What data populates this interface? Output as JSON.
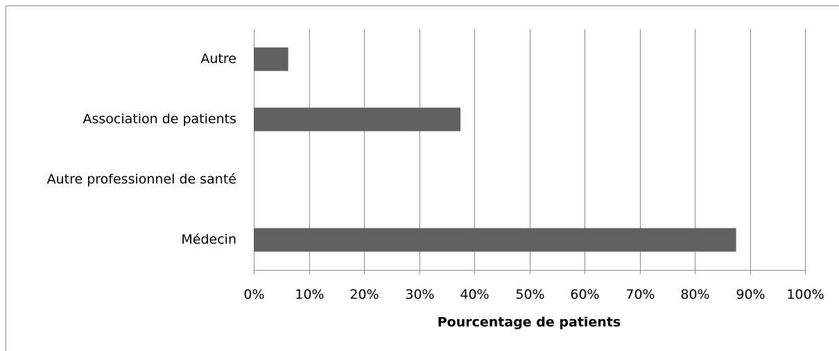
{
  "chart_data": {
    "type": "bar",
    "orientation": "horizontal",
    "categories": [
      "Autre",
      "Association de patients",
      "Autre professionnel de santé",
      "Médecin"
    ],
    "values": [
      6.25,
      37.5,
      0,
      87.5
    ],
    "color": "#606060",
    "xlabel": "Pourcentage de patients",
    "xlim": [
      0,
      100
    ],
    "xticks": [
      {
        "value": 0,
        "label": "0%"
      },
      {
        "value": 10,
        "label": "10%"
      },
      {
        "value": 20,
        "label": "20%"
      },
      {
        "value": 30,
        "label": "30%"
      },
      {
        "value": 40,
        "label": "40%"
      },
      {
        "value": 50,
        "label": "50%"
      },
      {
        "value": 60,
        "label": "60%"
      },
      {
        "value": 70,
        "label": "70%"
      },
      {
        "value": 80,
        "label": "80%"
      },
      {
        "value": 90,
        "label": "90%"
      },
      {
        "value": 100,
        "label": "100%"
      }
    ],
    "grid": true
  }
}
